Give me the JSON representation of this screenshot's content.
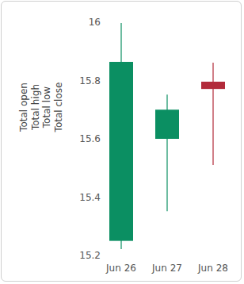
{
  "chart_data": {
    "type": "candlestick",
    "y_label": [
      "Total open",
      "Total high",
      "Total low",
      "Total close"
    ],
    "categories": [
      "Jun 26",
      "Jun 27",
      "Jun 28"
    ],
    "open": [
      15.25,
      15.6,
      15.796
    ],
    "high": [
      15.997,
      15.752,
      15.861
    ],
    "low": [
      15.222,
      15.352,
      15.51
    ],
    "close": [
      15.864,
      15.7,
      15.771
    ],
    "colors": [
      "#0b8f62",
      "#0b8f62",
      "#b22a3a"
    ],
    "ylim": [
      15.2,
      16
    ],
    "yticks": [
      15.2,
      15.4,
      15.6,
      15.8,
      16
    ],
    "grid": false
  }
}
